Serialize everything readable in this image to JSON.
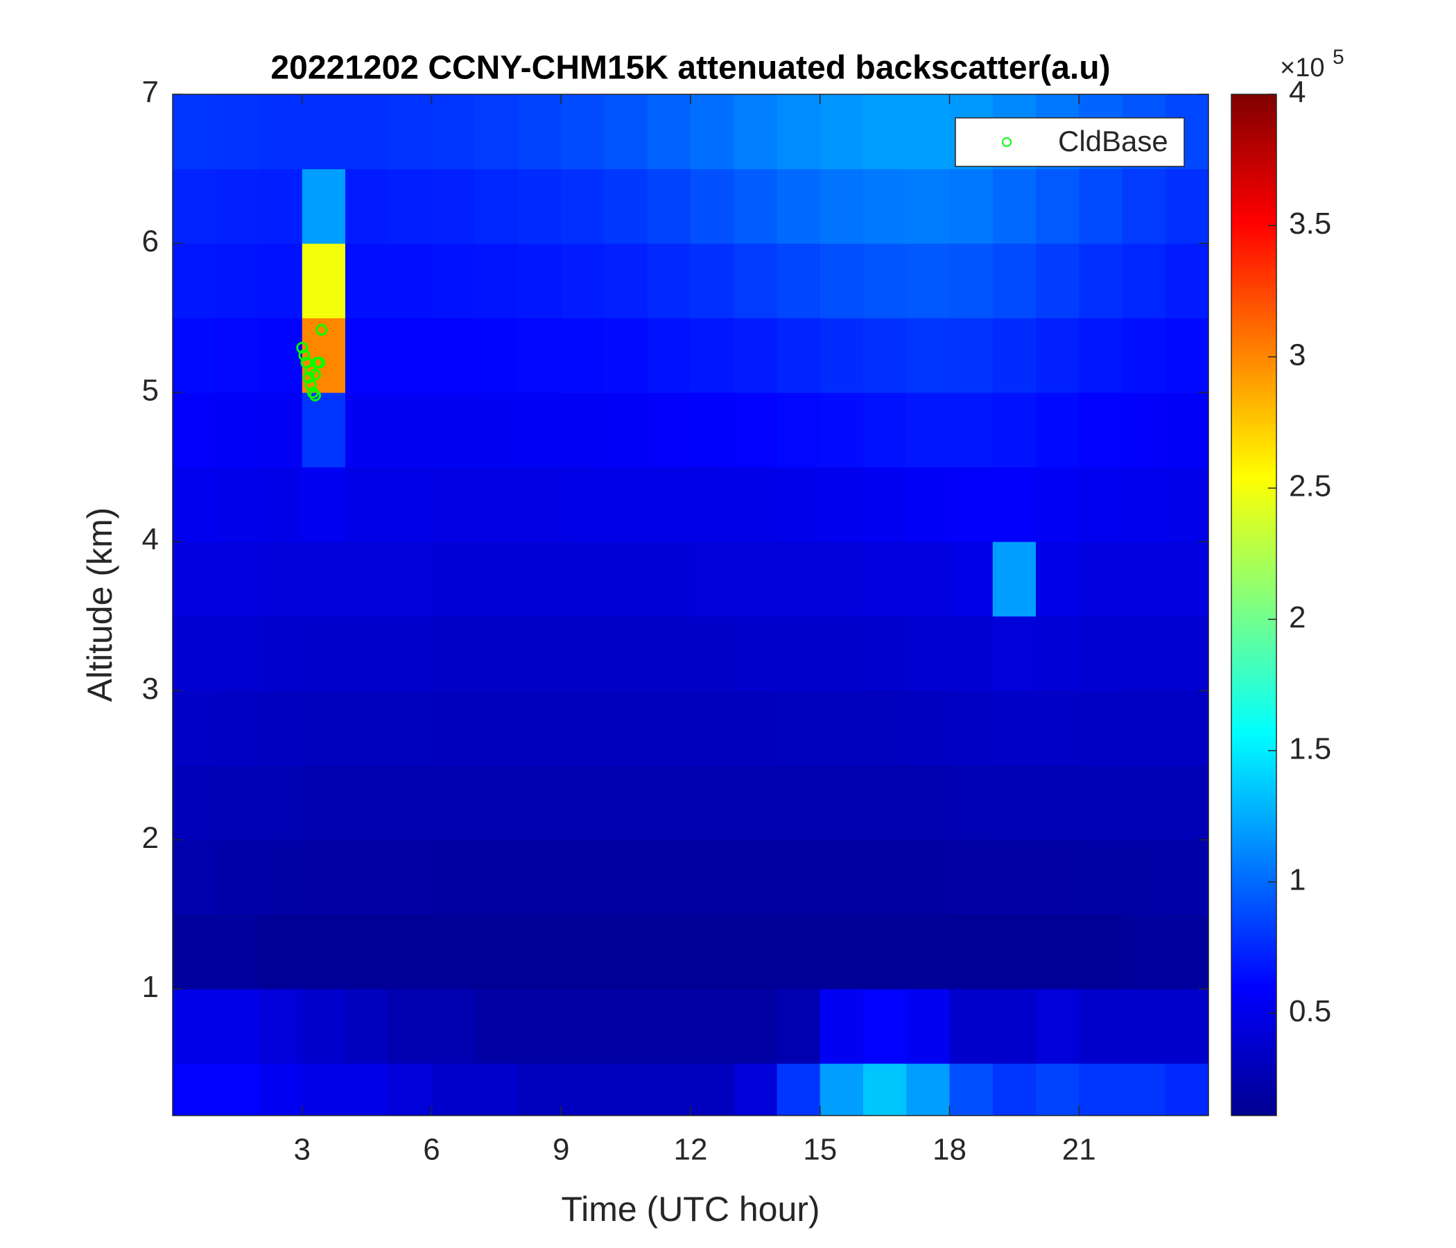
{
  "chart_data": {
    "type": "heatmap",
    "title": "20221202 CCNY-CHM15K attenuated backscatter(a.u)",
    "xlabel": "Time (UTC hour)",
    "ylabel": "Altitude (km)",
    "xlim": [
      0,
      24
    ],
    "ylim": [
      0.15,
      7
    ],
    "xticks": [
      3,
      6,
      9,
      12,
      15,
      18,
      21
    ],
    "yticks": [
      1,
      2,
      3,
      4,
      5,
      6,
      7
    ],
    "colormap": "jet",
    "clim": [
      0.11,
      4
    ],
    "cticks": [
      0.5,
      1,
      1.5,
      2,
      2.5,
      3,
      3.5,
      4
    ],
    "colorbar_multiplier": "×10",
    "colorbar_exponent": "5",
    "legend_position": "upper right",
    "x": [
      0.5,
      1.5,
      2.5,
      3.5,
      4.5,
      5.5,
      6.5,
      7.5,
      8.5,
      9.5,
      10.5,
      11.5,
      12.5,
      13.5,
      14.5,
      15.5,
      16.5,
      17.5,
      18.5,
      19.5,
      20.5,
      21.5,
      22.5,
      23.5
    ],
    "y": [
      0.25,
      0.75,
      1.25,
      1.75,
      2.25,
      2.75,
      3.25,
      3.75,
      4.25,
      4.75,
      5.25,
      5.75,
      6.25,
      6.75
    ],
    "z": [
      [
        0.6,
        0.6,
        0.55,
        0.5,
        0.5,
        0.45,
        0.4,
        0.4,
        0.35,
        0.35,
        0.35,
        0.35,
        0.35,
        0.45,
        0.8,
        1.2,
        1.35,
        1.2,
        0.9,
        0.8,
        0.85,
        0.8,
        0.8,
        0.75
      ],
      [
        0.5,
        0.5,
        0.45,
        0.4,
        0.35,
        0.3,
        0.3,
        0.25,
        0.25,
        0.25,
        0.25,
        0.25,
        0.25,
        0.25,
        0.3,
        0.55,
        0.6,
        0.55,
        0.4,
        0.4,
        0.45,
        0.4,
        0.4,
        0.4
      ],
      [
        0.22,
        0.22,
        0.2,
        0.2,
        0.2,
        0.2,
        0.2,
        0.2,
        0.2,
        0.2,
        0.2,
        0.2,
        0.2,
        0.2,
        0.2,
        0.2,
        0.2,
        0.2,
        0.2,
        0.2,
        0.2,
        0.2,
        0.22,
        0.22
      ],
      [
        0.28,
        0.27,
        0.26,
        0.25,
        0.25,
        0.25,
        0.24,
        0.24,
        0.24,
        0.24,
        0.24,
        0.24,
        0.24,
        0.24,
        0.24,
        0.24,
        0.24,
        0.24,
        0.25,
        0.25,
        0.25,
        0.26,
        0.26,
        0.27
      ],
      [
        0.33,
        0.32,
        0.31,
        0.3,
        0.3,
        0.3,
        0.3,
        0.29,
        0.29,
        0.29,
        0.29,
        0.29,
        0.29,
        0.29,
        0.3,
        0.3,
        0.3,
        0.3,
        0.31,
        0.32,
        0.32,
        0.32,
        0.32,
        0.32
      ],
      [
        0.38,
        0.37,
        0.36,
        0.35,
        0.35,
        0.35,
        0.34,
        0.34,
        0.34,
        0.34,
        0.34,
        0.34,
        0.34,
        0.34,
        0.35,
        0.35,
        0.35,
        0.36,
        0.37,
        0.38,
        0.38,
        0.37,
        0.37,
        0.37
      ],
      [
        0.43,
        0.42,
        0.41,
        0.4,
        0.4,
        0.4,
        0.39,
        0.39,
        0.39,
        0.39,
        0.39,
        0.39,
        0.39,
        0.4,
        0.4,
        0.4,
        0.41,
        0.42,
        0.43,
        0.45,
        0.44,
        0.43,
        0.42,
        0.42
      ],
      [
        0.48,
        0.47,
        0.46,
        0.45,
        0.45,
        0.45,
        0.44,
        0.44,
        0.44,
        0.44,
        0.44,
        0.44,
        0.45,
        0.45,
        0.46,
        0.46,
        0.47,
        0.48,
        0.5,
        1.2,
        0.5,
        0.48,
        0.47,
        0.47
      ],
      [
        0.53,
        0.52,
        0.51,
        0.55,
        0.5,
        0.5,
        0.49,
        0.49,
        0.49,
        0.5,
        0.5,
        0.5,
        0.5,
        0.51,
        0.52,
        0.53,
        0.55,
        0.57,
        0.58,
        0.58,
        0.56,
        0.54,
        0.53,
        0.52
      ],
      [
        0.58,
        0.57,
        0.56,
        0.8,
        0.55,
        0.55,
        0.55,
        0.55,
        0.56,
        0.56,
        0.57,
        0.58,
        0.59,
        0.6,
        0.62,
        0.64,
        0.66,
        0.68,
        0.68,
        0.66,
        0.63,
        0.6,
        0.58,
        0.57
      ],
      [
        0.63,
        0.62,
        0.61,
        3.0,
        0.6,
        0.6,
        0.6,
        0.61,
        0.62,
        0.63,
        0.64,
        0.66,
        0.68,
        0.7,
        0.73,
        0.76,
        0.78,
        0.8,
        0.79,
        0.76,
        0.72,
        0.68,
        0.65,
        0.63
      ],
      [
        0.68,
        0.67,
        0.66,
        2.5,
        0.65,
        0.65,
        0.66,
        0.67,
        0.68,
        0.7,
        0.72,
        0.75,
        0.78,
        0.82,
        0.86,
        0.9,
        0.92,
        0.93,
        0.92,
        0.88,
        0.83,
        0.78,
        0.74,
        0.7
      ],
      [
        0.73,
        0.72,
        0.71,
        1.2,
        0.7,
        0.71,
        0.72,
        0.74,
        0.76,
        0.78,
        0.81,
        0.85,
        0.9,
        0.95,
        1.0,
        1.04,
        1.06,
        1.07,
        1.05,
        1.0,
        0.94,
        0.88,
        0.82,
        0.78
      ],
      [
        0.8,
        0.79,
        0.78,
        0.78,
        0.78,
        0.79,
        0.8,
        0.82,
        0.85,
        0.88,
        0.92,
        0.97,
        1.02,
        1.08,
        1.13,
        1.17,
        1.2,
        1.2,
        1.18,
        1.12,
        1.05,
        0.98,
        0.92,
        0.87
      ]
    ],
    "series": [
      {
        "name": "CldBase",
        "type": "scatter",
        "color": "#00ff00",
        "x": [
          3.0,
          3.05,
          3.1,
          3.15,
          3.2,
          3.25,
          3.3,
          3.2,
          3.35,
          3.4,
          3.45,
          3.3
        ],
        "y": [
          5.3,
          5.25,
          5.2,
          5.1,
          5.05,
          5.0,
          4.98,
          5.15,
          5.2,
          5.2,
          5.42,
          5.12
        ]
      }
    ]
  }
}
